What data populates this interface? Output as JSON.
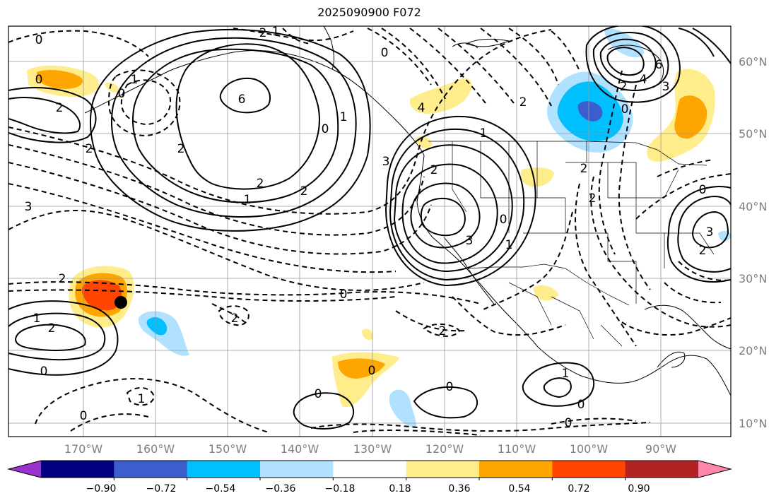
{
  "map": {
    "title": "2025090900 F072",
    "latitude_labels": [
      "60°N",
      "50°N",
      "40°N",
      "30°N",
      "20°N",
      "10°N"
    ],
    "longitude_labels": [
      "170°W",
      "160°W",
      "150°W",
      "140°W",
      "130°W",
      "120°W",
      "110°W",
      "100°W",
      "90°W"
    ],
    "contour_labels": {
      "west_pacific_high": [
        "2",
        "1",
        "2",
        "0"
      ],
      "central_ridge": [
        "6",
        "2",
        "1",
        "0"
      ],
      "california_low": [
        "2",
        "1",
        "2",
        "3",
        "0"
      ],
      "northwest_low": [
        "6",
        "4",
        "3",
        "2",
        "0"
      ],
      "subtropical": [
        "0",
        "0",
        "2",
        "0",
        "0",
        "1",
        "0",
        "0",
        "2",
        "0",
        "0",
        "1",
        "3",
        "3",
        "2"
      ]
    },
    "marker": {
      "label": "typhoon-position-marker"
    }
  },
  "colorbar": {
    "ticks": [
      "−0.90",
      "−0.72",
      "−0.54",
      "−0.36",
      "−0.18",
      "0.18",
      "0.36",
      "0.54",
      "0.72",
      "0.90"
    ],
    "colors": [
      "#9932cc",
      "#000080",
      "#3a5fcd",
      "#00bfff",
      "#b0e2ff",
      "#ffffff",
      "#ffec8b",
      "#ffa500",
      "#ff4500",
      "#b22222",
      "#ff88aa"
    ]
  }
}
